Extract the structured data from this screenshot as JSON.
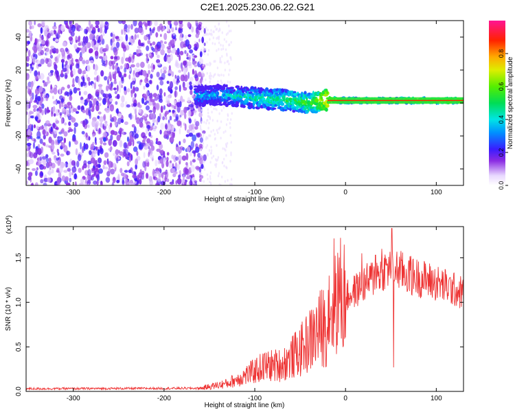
{
  "title": "C2E1.2025.230.06.22.G21",
  "chart_data": [
    {
      "type": "heatmap",
      "xlabel": "Height of straight line (km)",
      "ylabel": "Frequency (Hz)",
      "xlim": [
        -352,
        130
      ],
      "ylim": [
        -50,
        50
      ],
      "xticks": [
        -300,
        -200,
        -100,
        0,
        100
      ],
      "yticks": [
        -40,
        -20,
        0,
        20,
        40
      ],
      "x_ticklabels": [
        "-300",
        "-200",
        "-100",
        "0",
        "100"
      ],
      "y_ticklabels": [
        "-40",
        "-20",
        "0",
        "20",
        "40"
      ],
      "colorbar": {
        "label": "Normalized spectral amplitude",
        "range": [
          0,
          1
        ],
        "ticks": [
          0.0,
          0.2,
          0.4,
          0.6,
          0.8
        ],
        "ticklabels": [
          "0.0",
          "0.2",
          "0.4",
          "0.6",
          "0.8"
        ]
      },
      "signal_band": {
        "description_points": [
          {
            "x": -165,
            "f": 4,
            "amp": 0.35
          },
          {
            "x": -140,
            "f": 5,
            "amp": 0.35
          },
          {
            "x": -100,
            "f": 3,
            "amp": 0.45
          },
          {
            "x": -70,
            "f": 2,
            "amp": 0.5
          },
          {
            "x": -40,
            "f": 0,
            "amp": 0.55
          },
          {
            "x": -20,
            "f": 2,
            "amp": 0.75
          },
          {
            "x": 0,
            "f": 1.5,
            "amp": 0.55
          },
          {
            "x": 50,
            "f": 1.5,
            "amp": 0.55
          },
          {
            "x": 90,
            "f": 1.5,
            "amp": 0.6
          },
          {
            "x": 130,
            "f": 1.5,
            "amp": 0.6
          }
        ],
        "noise_region_end_x": -160
      }
    },
    {
      "type": "line",
      "xlabel": "Height of straight line (km)",
      "ylabel": "SNR (10 * v/v)",
      "y_multiplier_label": "(x10",
      "y_multiplier_exp": "4",
      "y_multiplier_close": ")",
      "xlim": [
        -352,
        130
      ],
      "ylim": [
        0,
        18500
      ],
      "xticks": [
        -300,
        -200,
        -100,
        0,
        100
      ],
      "yticks": [
        0,
        5000,
        10000,
        15000
      ],
      "x_ticklabels": [
        "-300",
        "-200",
        "-100",
        "0",
        "100"
      ],
      "y_ticklabels": [
        "0.0",
        "0.5",
        "1.0",
        "1.5"
      ],
      "series": [
        {
          "color": "#ee3333",
          "envelope": [
            {
              "x": -352,
              "y": 300
            },
            {
              "x": -160,
              "y": 350
            },
            {
              "x": -130,
              "y": 900
            },
            {
              "x": -110,
              "y": 1800
            },
            {
              "x": -90,
              "y": 2800
            },
            {
              "x": -70,
              "y": 3000
            },
            {
              "x": -50,
              "y": 4500
            },
            {
              "x": -30,
              "y": 6800
            },
            {
              "x": -20,
              "y": 7800
            },
            {
              "x": -12,
              "y": 11000
            },
            {
              "x": 0,
              "y": 10500
            },
            {
              "x": 20,
              "y": 12000
            },
            {
              "x": 40,
              "y": 13500
            },
            {
              "x": 52,
              "y": 14000
            },
            {
              "x": 70,
              "y": 13000
            },
            {
              "x": 90,
              "y": 12500
            },
            {
              "x": 110,
              "y": 11800
            },
            {
              "x": 130,
              "y": 11000
            }
          ],
          "spikes": [
            {
              "x": -18,
              "y": 13000
            },
            {
              "x": -14,
              "y": 11000
            },
            {
              "x": 18,
              "y": 15500
            },
            {
              "x": 33,
              "y": 15300
            },
            {
              "x": 40,
              "y": 16000
            },
            {
              "x": 51,
              "y": 18300
            },
            {
              "x": 53,
              "y": 2700
            },
            {
              "x": 72,
              "y": 15200
            }
          ]
        }
      ]
    }
  ]
}
